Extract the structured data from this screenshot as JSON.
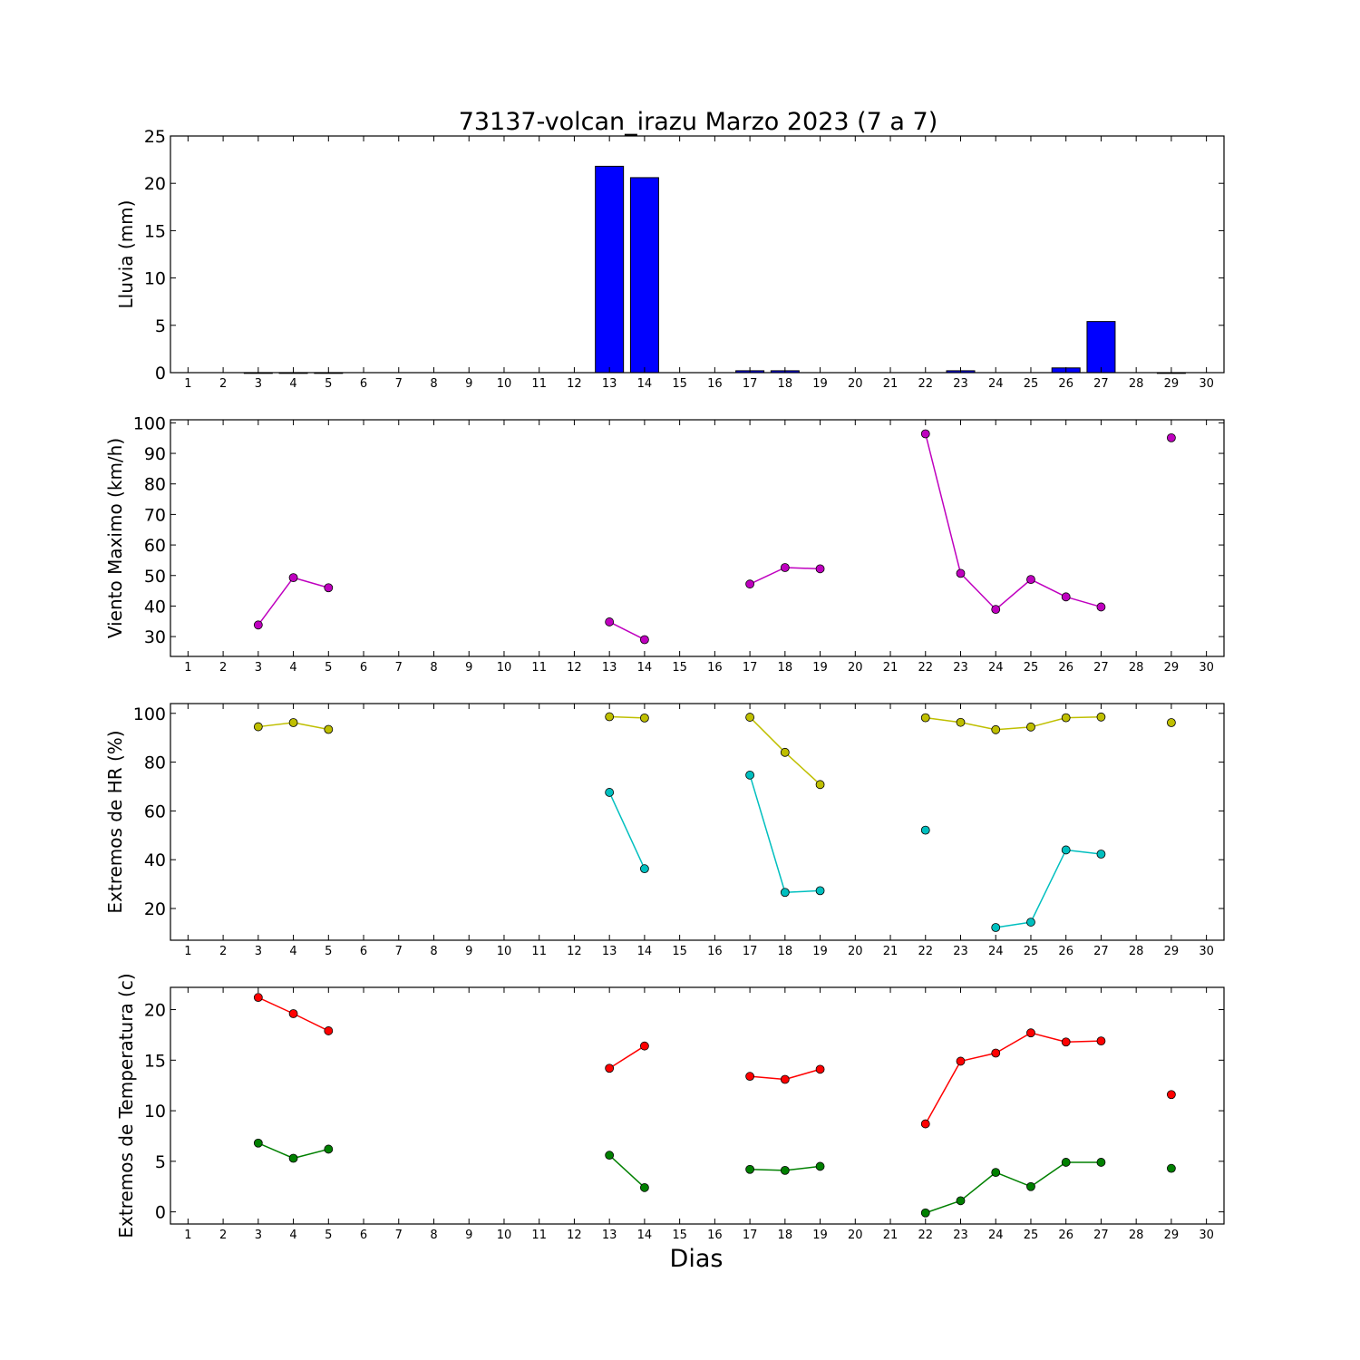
{
  "chart_data": {
    "title": "73137-volcan_irazu Marzo 2023  (7 a 7)",
    "xlabel": "Dias",
    "x_ticks": [
      1,
      2,
      3,
      4,
      5,
      6,
      7,
      8,
      9,
      10,
      11,
      12,
      13,
      14,
      15,
      16,
      17,
      18,
      19,
      20,
      21,
      22,
      23,
      24,
      25,
      26,
      27,
      28,
      29,
      30
    ],
    "xlim": [
      0.5,
      30.5
    ],
    "panels": [
      {
        "type": "bar",
        "ylabel": "Lluvia (mm)",
        "ylim": [
          0,
          25
        ],
        "yticks": [
          0,
          5,
          10,
          15,
          20,
          25
        ],
        "bar_color": "#0000ff",
        "x": [
          3,
          4,
          5,
          13,
          14,
          17,
          18,
          23,
          26,
          27,
          29
        ],
        "values": [
          0.0,
          0.0,
          0.0,
          21.8,
          20.6,
          0.2,
          0.2,
          0.2,
          0.5,
          5.4,
          0.0
        ]
      },
      {
        "type": "line",
        "ylabel": "Viento Maximo (km/h)",
        "ylim": [
          23.5,
          101
        ],
        "yticks": [
          30,
          40,
          50,
          60,
          70,
          80,
          90,
          100
        ],
        "series": [
          {
            "color": "#bf00bf",
            "points": [
              [
                3,
                33.8
              ],
              [
                4,
                49.3
              ],
              [
                5,
                46.0
              ],
              [
                13,
                34.8
              ],
              [
                14,
                29.0
              ],
              [
                17,
                47.2
              ],
              [
                18,
                52.6
              ],
              [
                19,
                52.2
              ],
              [
                22,
                96.4
              ],
              [
                23,
                50.7
              ],
              [
                24,
                38.9
              ],
              [
                25,
                48.7
              ],
              [
                26,
                43.0
              ],
              [
                27,
                39.7
              ],
              [
                29,
                95.1
              ]
            ]
          }
        ]
      },
      {
        "type": "line",
        "ylabel": "Extremos de HR (%)",
        "ylim": [
          7,
          104
        ],
        "yticks": [
          20,
          40,
          60,
          80,
          100
        ],
        "series": [
          {
            "color": "#bfbf00",
            "points": [
              [
                3,
                94.5
              ],
              [
                4,
                96.2
              ],
              [
                5,
                93.4
              ],
              [
                13,
                98.6
              ],
              [
                14,
                98.1
              ],
              [
                17,
                98.4
              ],
              [
                18,
                84.0
              ],
              [
                19,
                70.8
              ],
              [
                22,
                98.2
              ],
              [
                23,
                96.3
              ],
              [
                24,
                93.3
              ],
              [
                25,
                94.4
              ],
              [
                26,
                98.2
              ],
              [
                27,
                98.5
              ],
              [
                29,
                96.2
              ]
            ]
          },
          {
            "color": "#00bfbf",
            "points": [
              [
                13,
                67.6
              ],
              [
                14,
                36.3
              ],
              [
                17,
                74.7
              ],
              [
                18,
                26.6
              ],
              [
                19,
                27.3
              ],
              [
                22,
                52.1
              ],
              [
                24,
                12.2
              ],
              [
                25,
                14.4
              ],
              [
                26,
                44.0
              ],
              [
                27,
                42.3
              ]
            ]
          }
        ]
      },
      {
        "type": "line",
        "ylabel": "Extremos de Temperatura (c)",
        "ylim": [
          -1.2,
          22.2
        ],
        "yticks": [
          0,
          5,
          10,
          15,
          20
        ],
        "series": [
          {
            "color": "#ff0000",
            "points": [
              [
                3,
                21.2
              ],
              [
                4,
                19.6
              ],
              [
                5,
                17.9
              ],
              [
                13,
                14.2
              ],
              [
                14,
                16.4
              ],
              [
                17,
                13.4
              ],
              [
                18,
                13.1
              ],
              [
                19,
                14.1
              ],
              [
                22,
                8.7
              ],
              [
                23,
                14.9
              ],
              [
                24,
                15.7
              ],
              [
                25,
                17.7
              ],
              [
                26,
                16.8
              ],
              [
                27,
                16.9
              ],
              [
                29,
                11.6
              ]
            ]
          },
          {
            "color": "#008000",
            "points": [
              [
                3,
                6.8
              ],
              [
                4,
                5.3
              ],
              [
                5,
                6.2
              ],
              [
                13,
                5.6
              ],
              [
                14,
                2.4
              ],
              [
                17,
                4.2
              ],
              [
                18,
                4.1
              ],
              [
                19,
                4.5
              ],
              [
                22,
                -0.1
              ],
              [
                23,
                1.1
              ],
              [
                24,
                3.9
              ],
              [
                25,
                2.5
              ],
              [
                26,
                4.9
              ],
              [
                27,
                4.9
              ],
              [
                29,
                4.3
              ]
            ]
          }
        ]
      }
    ]
  }
}
